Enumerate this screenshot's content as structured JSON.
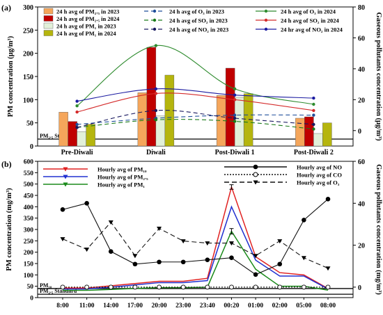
{
  "chart_data": [
    {
      "panel_label": "(a)",
      "type": "bar",
      "categories": [
        "Pre-Diwali",
        "Diwali",
        "Post-Diwali 1",
        "Post-Diwali 2"
      ],
      "ylabel": "PM concentration (μg/m³)",
      "y2label": "Gaseous pollutants concentration (μg/m³)",
      "ylim": [
        0,
        300
      ],
      "yticks": [
        0,
        50,
        100,
        150,
        200,
        250,
        300
      ],
      "y2lim": [
        -10,
        80
      ],
      "y2ticks": [
        0,
        20,
        40,
        60,
        80
      ],
      "reference_line": {
        "label": "PM₂.₅ Standard",
        "value": 15
      },
      "bar_series": [
        {
          "name": "24 h avg of PM₂.₅ in 2023",
          "color": "#f5a65b",
          "values": [
            73,
            115,
            109,
            60
          ]
        },
        {
          "name": "24 h avg of PM₂.₅ in 2024",
          "color": "#c00000",
          "values": [
            53,
            213,
            168,
            63
          ]
        },
        {
          "name": "24 h avg of PM₁ in 2023",
          "color": "#e2f0d9",
          "values": [
            31,
            65,
            105,
            27
          ]
        },
        {
          "name": "24 h avg of PM₁ in 2024",
          "color": "#b5b50e",
          "values": [
            47,
            153,
            113,
            50
          ]
        }
      ],
      "line_series": [
        {
          "name": "24 h avg of O₃ in 2023",
          "color": "#1f4e9a",
          "dash": "6,4",
          "values": [
            4,
            8,
            10,
            10
          ]
        },
        {
          "name": "24 h avg of O₃ in 2024",
          "color": "#2e8b2e",
          "dash": "",
          "values": [
            16,
            55,
            27,
            17
          ]
        },
        {
          "name": "24 h avg of SO₂ in 2023",
          "color": "#1a7a1a",
          "dash": "6,4",
          "values": [
            2,
            7,
            6,
            1
          ]
        },
        {
          "name": "24 h avg of SO₂ in 2024",
          "color": "#d42a2a",
          "dash": "",
          "values": [
            12,
            24,
            20,
            13
          ]
        },
        {
          "name": "24 h avg of NO₂ in 2023",
          "color": "#1a1a60",
          "dash": "6,4",
          "values": [
            2,
            13,
            8,
            4
          ]
        },
        {
          "name": "24 hr avg of NO₂ in 2024",
          "color": "#1a1aa0",
          "dash": "",
          "values": [
            19,
            27,
            23,
            21
          ]
        }
      ]
    },
    {
      "panel_label": "(b)",
      "type": "line",
      "x": [
        "8:00",
        "11:00",
        "14:00",
        "17:00",
        "20:00",
        "23:00",
        "23:40",
        "00:20",
        "01:00",
        "02:00",
        "05:00",
        "08:00"
      ],
      "ylabel": "PM concentration (mg/m³)",
      "y2label": "Gaseous pollutants concentration (mg/m³)",
      "ylim": [
        0,
        600
      ],
      "yticks": [
        0,
        50,
        100,
        150,
        200,
        250,
        300,
        350,
        400,
        450,
        500,
        550,
        600
      ],
      "y2lim": [
        -5,
        60
      ],
      "y2ticks": [
        0,
        20,
        40,
        60
      ],
      "reference_lines": [
        {
          "label": "PM₁₀",
          "value": 40
        },
        {
          "label": "PM₂.₅ Standard",
          "value": 15
        }
      ],
      "series": [
        {
          "name": "Hourly avg of PM₁₀",
          "axis": "left",
          "color": "#e02020",
          "dash": "",
          "marker": "none",
          "values": [
            42,
            42,
            52,
            62,
            72,
            72,
            85,
            487,
            180,
            110,
            100,
            40
          ]
        },
        {
          "name": "Hourly avg of PM₂.₅",
          "axis": "left",
          "color": "#2030d0",
          "dash": "",
          "marker": "none",
          "values": [
            38,
            38,
            46,
            56,
            66,
            66,
            75,
            400,
            165,
            95,
            95,
            38
          ]
        },
        {
          "name": "Hourly avg of PM₁",
          "axis": "left",
          "color": "#1a8a1a",
          "dash": "",
          "marker": "none",
          "values": [
            32,
            32,
            36,
            40,
            44,
            44,
            46,
            292,
            125,
            50,
            50,
            33
          ]
        },
        {
          "name": "Hourly avg of NO",
          "axis": "right",
          "color": "#111111",
          "dash": "",
          "marker": "filled-circle",
          "values": [
            37,
            40,
            17,
            11,
            12,
            12,
            13,
            14,
            6,
            11,
            32,
            42
          ]
        },
        {
          "name": "Hourly avg of CO",
          "axis": "right",
          "color": "#111111",
          "dash": "2,2",
          "marker": "open-circle",
          "values": [
            0,
            0,
            0,
            0,
            0,
            0,
            0,
            0,
            0,
            0,
            0,
            0
          ]
        },
        {
          "name": "Hourly avg of O₃",
          "axis": "right",
          "color": "#111111",
          "dash": "7,4",
          "marker": "triangle-down",
          "values": [
            23,
            18,
            31,
            15,
            28,
            22,
            21,
            21,
            15,
            22,
            14,
            9
          ]
        }
      ],
      "error_bars": [
        {
          "series": "Hourly avg of PM₁₀",
          "index": 7,
          "error": 10
        },
        {
          "series": "Hourly avg of PM₁",
          "index": 7,
          "error": 12
        }
      ]
    }
  ]
}
